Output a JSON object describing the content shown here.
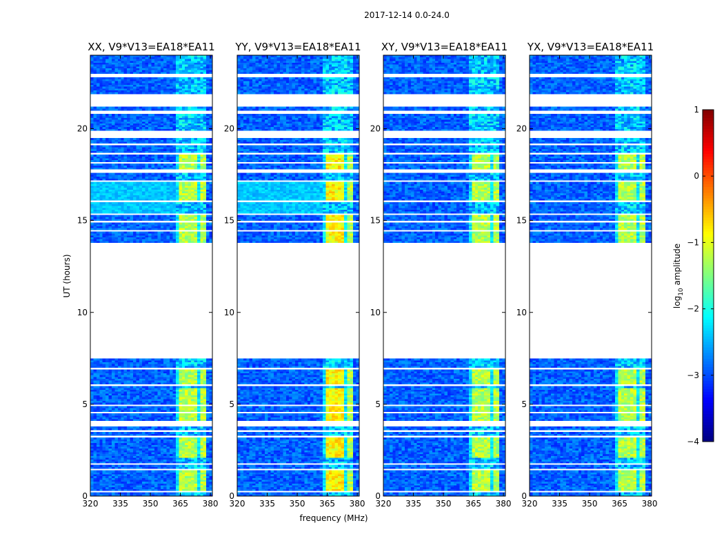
{
  "chart_data": {
    "type": "heatmap",
    "suptitle": "2017-12-14 0.0-24.0",
    "xlabel": "frequency (MHz)",
    "ylabel": "UT (hours)",
    "xlim": [
      320,
      381
    ],
    "ylim": [
      0,
      24
    ],
    "xticks": [
      "320",
      "335",
      "350",
      "365",
      "380"
    ],
    "xtick_values": [
      320,
      335,
      350,
      365,
      380
    ],
    "yticks": [
      "0",
      "5",
      "10",
      "15",
      "20"
    ],
    "ytick_values": [
      0,
      5,
      10,
      15,
      20
    ],
    "panels": [
      {
        "title": "XX, V9*V13=EA18*EA11",
        "name": "XX"
      },
      {
        "title": "YY, V9*V13=EA18*EA11",
        "name": "YY"
      },
      {
        "title": "XY, V9*V13=EA18*EA11",
        "name": "XY"
      },
      {
        "title": "YX, V9*V13=EA18*EA11",
        "name": "YX"
      }
    ],
    "colorbar": {
      "label_main": "log",
      "label_sub": "10",
      "label_tail": " amplitude",
      "min": -4,
      "max": 1,
      "ticks": [
        "1",
        "0",
        "−1",
        "−2",
        "−3",
        "−4"
      ],
      "tick_values": [
        1,
        0,
        -1,
        -2,
        -3,
        -4
      ],
      "colormap": "jet"
    },
    "data_gaps_hours": [
      [
        0.25,
        0.3
      ],
      [
        1.45,
        1.55
      ],
      [
        1.75,
        1.8
      ],
      [
        2.0,
        2.05
      ],
      [
        3.2,
        3.35
      ],
      [
        3.55,
        3.65
      ],
      [
        3.85,
        4.15
      ],
      [
        4.5,
        4.6
      ],
      [
        4.9,
        5.0
      ],
      [
        6.0,
        6.1
      ],
      [
        6.9,
        7.0
      ],
      [
        7.5,
        13.8
      ],
      [
        14.4,
        14.5
      ],
      [
        14.9,
        15.0
      ],
      [
        15.3,
        15.4
      ],
      [
        16.05,
        16.1
      ],
      [
        17.1,
        17.2
      ],
      [
        17.6,
        17.8
      ],
      [
        18.1,
        18.2
      ],
      [
        18.6,
        18.7
      ],
      [
        19.1,
        19.2
      ],
      [
        19.5,
        19.9
      ],
      [
        20.85,
        21.0
      ],
      [
        21.2,
        21.9
      ],
      [
        22.5,
        22.55
      ],
      [
        22.8,
        23.0
      ],
      [
        23.3,
        23.35
      ]
    ],
    "rfi_band_mhz": [
      363,
      378
    ],
    "strong_rfi_periods_hours": [
      [
        0.3,
        1.45
      ],
      [
        2.1,
        3.2
      ],
      [
        4.15,
        5.9
      ],
      [
        6.1,
        6.9
      ],
      [
        13.8,
        15.3
      ],
      [
        16.1,
        17.1
      ],
      [
        17.8,
        18.6
      ]
    ]
  }
}
